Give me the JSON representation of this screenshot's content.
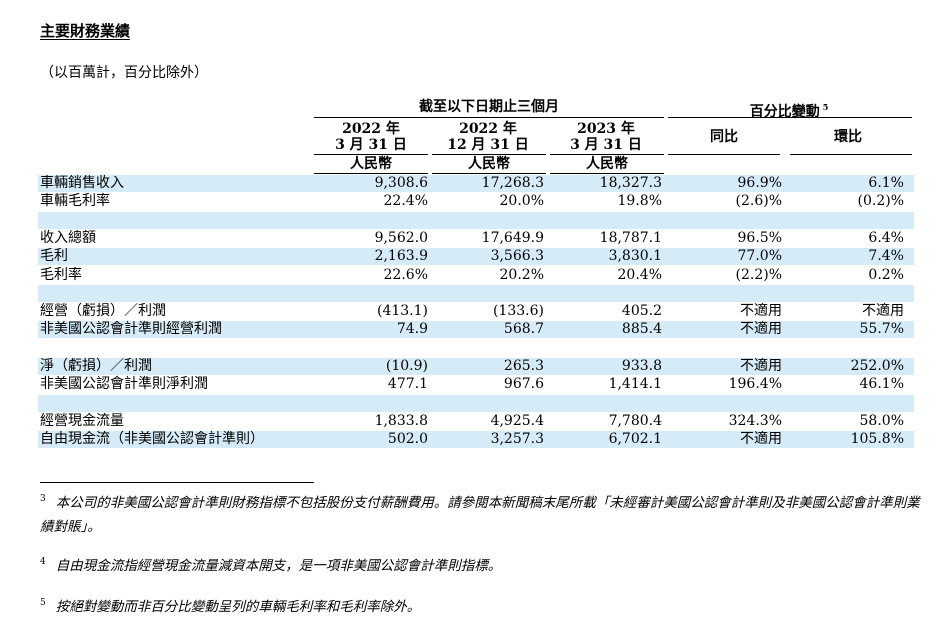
{
  "title": "主要財務業績",
  "subtitle": "（以百萬計，百分比除外）",
  "header": {
    "period_group": "截至以下日期止三個月",
    "change_group": "百分比變動",
    "change_group_note": "5",
    "col1_year": "2022 年",
    "col1_date": "3 月 31 日",
    "col2_year": "2022 年",
    "col2_date": "12 月 31 日",
    "col3_year": "2023 年",
    "col3_date": "3 月 31 日",
    "currency": "人民幣",
    "yoy": "同比",
    "qoq": "環比"
  },
  "rows": [
    {
      "label": "車輛銷售收入",
      "c1": "9,308.6",
      "c2": "17,268.3",
      "c3": "18,327.3",
      "c4": "96.9%",
      "c5": "6.1%",
      "shade": true
    },
    {
      "label": "車輛毛利率",
      "c1": "22.4%",
      "c2": "20.0%",
      "c3": "19.8%",
      "c4": "(2.6)%",
      "c5": "(0.2)%",
      "shade": false
    },
    {
      "label": "",
      "c1": "",
      "c2": "",
      "c3": "",
      "c4": "",
      "c5": "",
      "shade": true
    },
    {
      "label": "收入總額",
      "c1": "9,562.0",
      "c2": "17,649.9",
      "c3": "18,787.1",
      "c4": "96.5%",
      "c5": "6.4%",
      "shade": false
    },
    {
      "label": "毛利",
      "c1": "2,163.9",
      "c2": "3,566.3",
      "c3": "3,830.1",
      "c4": "77.0%",
      "c5": "7.4%",
      "shade": true
    },
    {
      "label": "毛利率",
      "c1": "22.6%",
      "c2": "20.2%",
      "c3": "20.4%",
      "c4": "(2.2)%",
      "c5": "0.2%",
      "shade": false
    },
    {
      "label": "",
      "c1": "",
      "c2": "",
      "c3": "",
      "c4": "",
      "c5": "",
      "shade": true
    },
    {
      "label": "經營（虧損）／利潤",
      "c1": "(413.1)",
      "c2": "(133.6)",
      "c3": "405.2",
      "c4": "不適用",
      "c5": "不適用",
      "shade": false
    },
    {
      "label": "非美國公認會計準則經營利潤",
      "c1": "74.9",
      "c2": "568.7",
      "c3": "885.4",
      "c4": "不適用",
      "c5": "55.7%",
      "shade": true
    },
    {
      "label": "",
      "c1": "",
      "c2": "",
      "c3": "",
      "c4": "",
      "c5": "",
      "shade": false
    },
    {
      "label": "淨（虧損）／利潤",
      "c1": "(10.9)",
      "c2": "265.3",
      "c3": "933.8",
      "c4": "不適用",
      "c5": "252.0%",
      "shade": true
    },
    {
      "label": "非美國公認會計準則淨利潤",
      "c1": "477.1",
      "c2": "967.6",
      "c3": "1,414.1",
      "c4": "196.4%",
      "c5": "46.1%",
      "shade": false
    },
    {
      "label": "",
      "c1": "",
      "c2": "",
      "c3": "",
      "c4": "",
      "c5": "",
      "shade": true
    },
    {
      "label": "經營現金流量",
      "c1": "1,833.8",
      "c2": "4,925.4",
      "c3": "7,780.4",
      "c4": "324.3%",
      "c5": "58.0%",
      "shade": false
    },
    {
      "label": "自由現金流（非美國公認會計準則）",
      "c1": "502.0",
      "c2": "3,257.3",
      "c3": "6,702.1",
      "c4": "不適用",
      "c5": "105.8%",
      "shade": true
    }
  ],
  "footnotes": [
    {
      "num": "3",
      "text": "本公司的非美國公認會計準則財務指標不包括股份支付薪酬費用。請參閱本新聞稿末尾所載「未經審計美國公認會計準則及非美國公認會計準則業績對賬」。"
    },
    {
      "num": "4",
      "text": "自由現金流指經營現金流量減資本開支，是一項非美國公認會計準則指標。"
    },
    {
      "num": "5",
      "text": "按絕對變動而非百分比變動呈列的車輛毛利率和毛利率除外。"
    }
  ]
}
